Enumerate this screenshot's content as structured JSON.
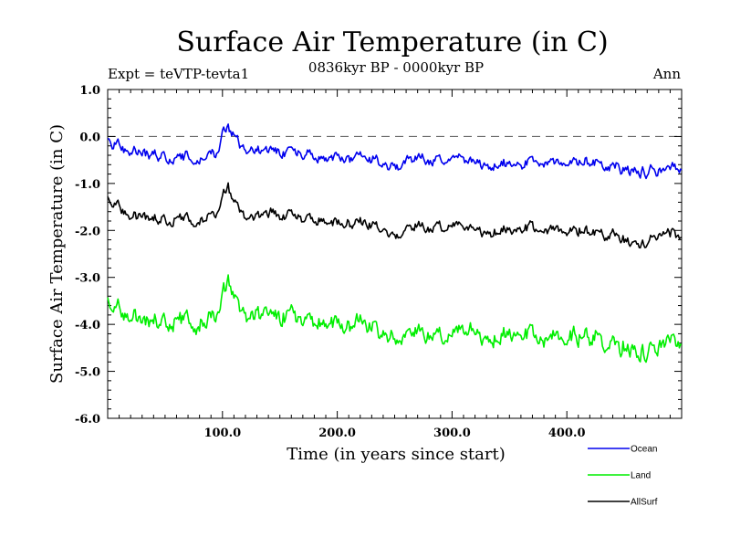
{
  "chart_data": {
    "type": "line",
    "title": "Surface Air Temperature (in C)",
    "subtitle": "0836kyr BP - 0000kyr BP",
    "left_label": "Expt = teVTP-tevta1",
    "right_label": "Ann",
    "xlabel": "Time (in years since start)",
    "ylabel": "Surface Air Temperature (in C)",
    "xlim": [
      0,
      500
    ],
    "ylim": [
      -6.0,
      1.0
    ],
    "x_ticks": [
      100,
      200,
      300,
      400
    ],
    "x_tick_labels": [
      "100.0",
      "200.0",
      "300.0",
      "400.0"
    ],
    "y_ticks": [
      1.0,
      0.0,
      -1.0,
      -2.0,
      -3.0,
      -4.0,
      -5.0,
      -6.0
    ],
    "y_tick_labels": [
      "1.0",
      "0.0",
      "-1.0",
      "-2.0",
      "-3.0",
      "-4.0",
      "-5.0",
      "-6.0"
    ],
    "reference_line": 0.0,
    "legend_position": "below-right",
    "series": [
      {
        "name": "Ocean",
        "color": "#0000ee",
        "x": [
          0,
          20,
          40,
          60,
          80,
          95,
          100,
          105,
          110,
          120,
          140,
          160,
          180,
          200,
          220,
          240,
          250,
          260,
          280,
          300,
          320,
          340,
          360,
          380,
          400,
          420,
          440,
          460,
          480,
          500
        ],
        "values": [
          -0.05,
          -0.3,
          -0.4,
          -0.45,
          -0.45,
          -0.35,
          0.1,
          0.2,
          -0.05,
          -0.3,
          -0.3,
          -0.35,
          -0.45,
          -0.45,
          -0.45,
          -0.55,
          -0.7,
          -0.5,
          -0.5,
          -0.5,
          -0.55,
          -0.6,
          -0.55,
          -0.55,
          -0.5,
          -0.55,
          -0.6,
          -0.75,
          -0.7,
          -0.65
        ],
        "noise_amplitude": 0.12
      },
      {
        "name": "Land",
        "color": "#00ee00",
        "x": [
          0,
          20,
          40,
          60,
          80,
          95,
          100,
          105,
          110,
          120,
          140,
          160,
          180,
          200,
          220,
          240,
          250,
          260,
          280,
          300,
          320,
          340,
          360,
          380,
          400,
          420,
          440,
          460,
          480,
          500
        ],
        "values": [
          -3.45,
          -3.8,
          -3.95,
          -3.85,
          -3.95,
          -3.8,
          -3.3,
          -3.05,
          -3.5,
          -3.8,
          -3.8,
          -3.85,
          -3.95,
          -4.0,
          -4.0,
          -4.15,
          -4.4,
          -4.2,
          -4.25,
          -4.25,
          -4.2,
          -4.25,
          -4.2,
          -4.3,
          -4.2,
          -4.25,
          -4.35,
          -4.6,
          -4.45,
          -4.3
        ],
        "noise_amplitude": 0.2
      },
      {
        "name": "AllSurf",
        "color": "#000000",
        "x": [
          0,
          20,
          40,
          60,
          80,
          95,
          100,
          105,
          110,
          120,
          140,
          160,
          180,
          200,
          220,
          240,
          250,
          260,
          280,
          300,
          320,
          340,
          360,
          380,
          400,
          420,
          440,
          460,
          480,
          500
        ],
        "values": [
          -1.3,
          -1.65,
          -1.75,
          -1.75,
          -1.75,
          -1.65,
          -1.25,
          -1.05,
          -1.45,
          -1.7,
          -1.65,
          -1.7,
          -1.8,
          -1.85,
          -1.85,
          -1.95,
          -2.2,
          -1.95,
          -1.95,
          -1.95,
          -2.0,
          -2.0,
          -1.95,
          -2.0,
          -1.95,
          -2.0,
          -2.05,
          -2.3,
          -2.1,
          -2.05
        ],
        "noise_amplitude": 0.12
      }
    ]
  }
}
